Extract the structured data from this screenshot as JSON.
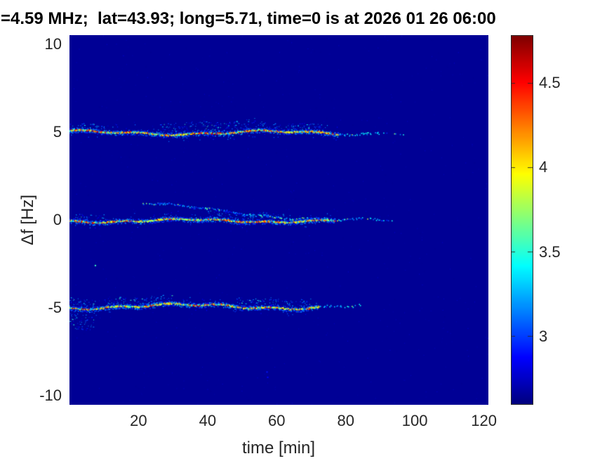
{
  "title": {
    "text": "=4.59 MHz;  lat=43.93; long=5.71, time=0 is at 2026 01 26 06:00"
  },
  "colors": {
    "page_background": "#ffffff",
    "tick_text": "#262626",
    "title_text": "#000000",
    "plot_background": "#000094"
  },
  "chart_data": {
    "type": "heatmap",
    "title": "=4.59 MHz;  lat=43.93; long=5.71, time=0 is at 2026 01 26 06:00",
    "xlabel": "time [min]",
    "ylabel": "Δf [Hz]",
    "x_ticks": [
      20,
      40,
      60,
      80,
      100,
      120
    ],
    "y_ticks": [
      10,
      5,
      0,
      -5,
      -10
    ],
    "xlim": [
      0,
      121.3
    ],
    "ylim": [
      -10.5,
      10.5
    ],
    "colormap": "jet",
    "clim": [
      2.6,
      4.78
    ],
    "colorbar_ticks": [
      4.5,
      4,
      3.5,
      3
    ],
    "background_value": 2.645,
    "legend": "none",
    "grid": false,
    "description": "Doppler-shift spectrogram: three speckled quasi-horizontal traces at Δf ≈ +5, 0 and −5 Hz running from t = 0 to ≈75 min (solid, yellow/orange/red core ≈3.8–4.8 with cyan fringe), then fading to sparse blue-cyan dots by ≈90–98 min; diffuse blue-cyan speckle clouds sit just above each trace, including a ghost branch above the 0 Hz trace descending from ≈+1 Hz at t≈22 min to the main line at t≈75 min; uniform dark-blue background ≈2.6.",
    "seed": 9001,
    "noise_dots": 900,
    "traces": [
      {
        "name": "upper-trace",
        "center_hz": 4.95,
        "solid_until_min": 78,
        "sparse_until_min": 98,
        "wander": [
          [
            0.1,
            55,
            1.2
          ],
          [
            0.05,
            17,
            0.4
          ]
        ],
        "clouds": [
          {
            "from": 26,
            "to": 54,
            "off_lo": 0.12,
            "off_hi": 0.72,
            "per_min": 5,
            "side": 1
          },
          {
            "from": 55,
            "to": 74,
            "off_lo": 0.08,
            "off_hi": 0.5,
            "per_min": 4,
            "side": 1
          },
          {
            "from": 0,
            "to": 12,
            "off_lo": 0.05,
            "off_hi": 0.4,
            "per_min": 3,
            "side": 1
          }
        ],
        "ghost": null,
        "seed": 101
      },
      {
        "name": "center-trace",
        "center_hz": -0.05,
        "solid_until_min": 77,
        "sparse_until_min": 95,
        "wander": [
          [
            0.08,
            50,
            3.6
          ],
          [
            0.04,
            14,
            1.1
          ]
        ],
        "clouds": [
          {
            "from": 40,
            "to": 62,
            "off_lo": 0.1,
            "off_hi": 0.55,
            "per_min": 4,
            "side": 1
          },
          {
            "from": 0,
            "to": 10,
            "off_lo": 0.05,
            "off_hi": 0.45,
            "per_min": 3,
            "side": 1
          }
        ],
        "ghost": {
          "from": 21,
          "to": 75,
          "off_start": 1.05,
          "off_end": 0.1,
          "per_min": 6
        },
        "seed": 202
      },
      {
        "name": "lower-trace",
        "center_hz": -4.92,
        "solid_until_min": 72,
        "sparse_until_min": 88,
        "wander": [
          [
            0.12,
            60,
            4.4
          ],
          [
            0.06,
            15,
            2.2
          ]
        ],
        "clouds": [
          {
            "from": 0,
            "to": 7,
            "off_lo": 0.05,
            "off_hi": 1.15,
            "per_min": 9,
            "side": -1
          },
          {
            "from": 0,
            "to": 7,
            "off_lo": 0.05,
            "off_hi": 0.6,
            "per_min": 6,
            "side": 1
          },
          {
            "from": 8,
            "to": 30,
            "off_lo": 0.08,
            "off_hi": 0.55,
            "per_min": 4,
            "side": 1
          },
          {
            "from": 48,
            "to": 70,
            "off_lo": 0.1,
            "off_hi": 0.6,
            "per_min": 4,
            "side": 1
          }
        ],
        "ghost": null,
        "seed": 303
      }
    ],
    "extra_dots": [
      {
        "t": 7.3,
        "f": -2.55,
        "v": 3.55
      },
      {
        "t": 57.0,
        "f": -8.6,
        "v": 2.92
      },
      {
        "t": 57.2,
        "f": -8.9,
        "v": 2.87
      }
    ]
  }
}
